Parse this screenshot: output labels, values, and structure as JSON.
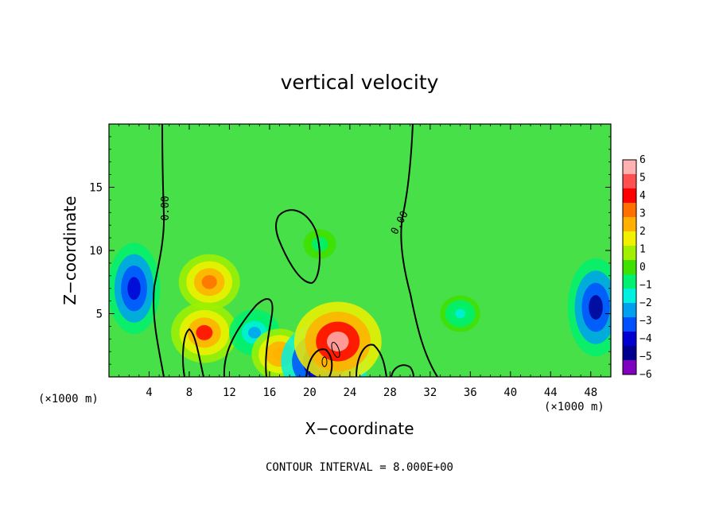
{
  "chart_data": {
    "type": "heatmap",
    "title": "vertical velocity",
    "xlabel": "X−coordinate",
    "ylabel": "Z−coordinate",
    "x_unit": "(×1000 m)",
    "z_unit": "(×1000 m)",
    "footer": "CONTOUR INTERVAL = 8.000E+00",
    "xlim": [
      0,
      50
    ],
    "ylim": [
      0,
      20
    ],
    "xticks": [
      4,
      8,
      12,
      16,
      20,
      24,
      28,
      32,
      36,
      40,
      44,
      48
    ],
    "yticks": [
      5,
      10,
      15
    ],
    "contour_label": "0.00",
    "colorbar": {
      "levels": [
        6,
        5,
        4,
        3,
        2,
        1,
        0,
        -1,
        -2,
        -3,
        -4,
        -5,
        -6
      ],
      "labels": [
        "6",
        "5",
        "4",
        "3",
        "2",
        "1",
        "0",
        "−1",
        "−2",
        "−3",
        "−4",
        "−5",
        "−6"
      ],
      "colors": [
        "#ffb0b0",
        "#ff5050",
        "#ff0000",
        "#ff7000",
        "#ffb000",
        "#f0f000",
        "#a0f000",
        "#40e000",
        "#00f070",
        "#00f0e0",
        "#00a0f0",
        "#0050ff",
        "#0000d0",
        "#000090",
        "#8000c0"
      ]
    },
    "features": [
      {
        "x": 2.5,
        "z": 7.0,
        "value": -4.5
      },
      {
        "x": 10.0,
        "z": 7.5,
        "value": 3.5
      },
      {
        "x": 9.5,
        "z": 3.5,
        "value": 4.0
      },
      {
        "x": 14.5,
        "z": 3.5,
        "value": -2.5
      },
      {
        "x": 17.0,
        "z": 1.8,
        "value": 3.0
      },
      {
        "x": 21.5,
        "z": 1.2,
        "value": -6.0
      },
      {
        "x": 22.8,
        "z": 2.8,
        "value": 6.0
      },
      {
        "x": 21.0,
        "z": 10.5,
        "value": -0.8
      },
      {
        "x": 48.5,
        "z": 5.5,
        "value": -5.0
      },
      {
        "x": 35.0,
        "z": 5.0,
        "value": -1.5
      }
    ]
  }
}
